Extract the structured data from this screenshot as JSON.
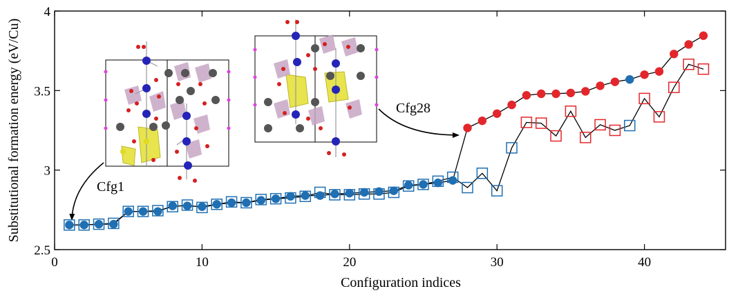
{
  "chart_data": {
    "type": "scatter",
    "title": "",
    "xlabel": "Configuration indices",
    "ylabel": "Substitutional formation energy (eV/Cu)",
    "xlim": [
      0,
      45.5
    ],
    "ylim": [
      2.5,
      4.0
    ],
    "xticks": [
      0,
      10,
      20,
      30,
      40
    ],
    "yticks": [
      2.5,
      3,
      3.5,
      4
    ],
    "xtick_labels": [
      "0",
      "10",
      "20",
      "30",
      "40"
    ],
    "ytick_labels": [
      "2.5",
      "3",
      "3.5",
      "4"
    ],
    "grid": false,
    "legend": "none",
    "colors": {
      "blue": "#1f6fb2",
      "red": "#e3262b",
      "line": "#000000"
    },
    "series": [
      {
        "marker": "filled-circle",
        "x": [
          1,
          2,
          3,
          4,
          5,
          6,
          7,
          8,
          9,
          10,
          11,
          12,
          13,
          14,
          15,
          16,
          17,
          18,
          19,
          20,
          21,
          22,
          23,
          24,
          25,
          26,
          27,
          28,
          29,
          30,
          31,
          32,
          33,
          34,
          35,
          36,
          37,
          38,
          39,
          40,
          41,
          42,
          43,
          44
        ],
        "y": [
          2.655,
          2.655,
          2.66,
          2.66,
          2.74,
          2.74,
          2.74,
          2.775,
          2.775,
          2.77,
          2.785,
          2.795,
          2.795,
          2.81,
          2.82,
          2.835,
          2.84,
          2.84,
          2.85,
          2.855,
          2.86,
          2.865,
          2.87,
          2.905,
          2.91,
          2.92,
          2.935,
          3.265,
          3.31,
          3.355,
          3.41,
          3.47,
          3.48,
          3.48,
          3.485,
          3.495,
          3.53,
          3.555,
          3.57,
          3.6,
          3.62,
          3.73,
          3.79,
          3.845
        ],
        "colors": [
          "blue",
          "blue",
          "blue",
          "blue",
          "blue",
          "blue",
          "blue",
          "blue",
          "blue",
          "blue",
          "blue",
          "blue",
          "blue",
          "blue",
          "blue",
          "blue",
          "blue",
          "blue",
          "blue",
          "blue",
          "blue",
          "blue",
          "blue",
          "blue",
          "blue",
          "blue",
          "blue",
          "red",
          "red",
          "red",
          "red",
          "red",
          "red",
          "red",
          "red",
          "red",
          "red",
          "red",
          "blue",
          "red",
          "red",
          "red",
          "red",
          "red"
        ]
      },
      {
        "marker": "open-square",
        "x": [
          1,
          2,
          3,
          4,
          5,
          6,
          7,
          8,
          9,
          10,
          11,
          12,
          13,
          14,
          15,
          16,
          17,
          18,
          19,
          20,
          21,
          22,
          23,
          24,
          25,
          26,
          27,
          28,
          29,
          30,
          31,
          32,
          33,
          34,
          35,
          36,
          37,
          38,
          39,
          40,
          41,
          42,
          43,
          44
        ],
        "y": [
          2.655,
          2.655,
          2.66,
          2.665,
          2.74,
          2.74,
          2.745,
          2.77,
          2.78,
          2.765,
          2.785,
          2.8,
          2.795,
          2.815,
          2.82,
          2.825,
          2.835,
          2.86,
          2.845,
          2.845,
          2.85,
          2.85,
          2.86,
          2.9,
          2.91,
          2.93,
          2.955,
          2.89,
          2.98,
          2.87,
          3.14,
          3.3,
          3.295,
          3.215,
          3.37,
          3.205,
          3.285,
          3.25,
          3.28,
          3.45,
          3.335,
          3.52,
          3.665,
          3.635
        ],
        "colors": [
          "blue",
          "blue",
          "blue",
          "blue",
          "blue",
          "blue",
          "blue",
          "blue",
          "blue",
          "blue",
          "blue",
          "blue",
          "blue",
          "blue",
          "blue",
          "blue",
          "blue",
          "blue",
          "blue",
          "blue",
          "blue",
          "blue",
          "blue",
          "blue",
          "blue",
          "blue",
          "blue",
          "blue",
          "blue",
          "blue",
          "blue",
          "red",
          "red",
          "red",
          "red",
          "red",
          "red",
          "red",
          "blue",
          "red",
          "red",
          "red",
          "red",
          "red"
        ]
      }
    ],
    "annotations": [
      {
        "label": "Cfg1",
        "target_x": 1,
        "target_y": 2.655
      },
      {
        "label": "Cfg28",
        "target_x": 28,
        "target_y": 3.265
      }
    ]
  }
}
